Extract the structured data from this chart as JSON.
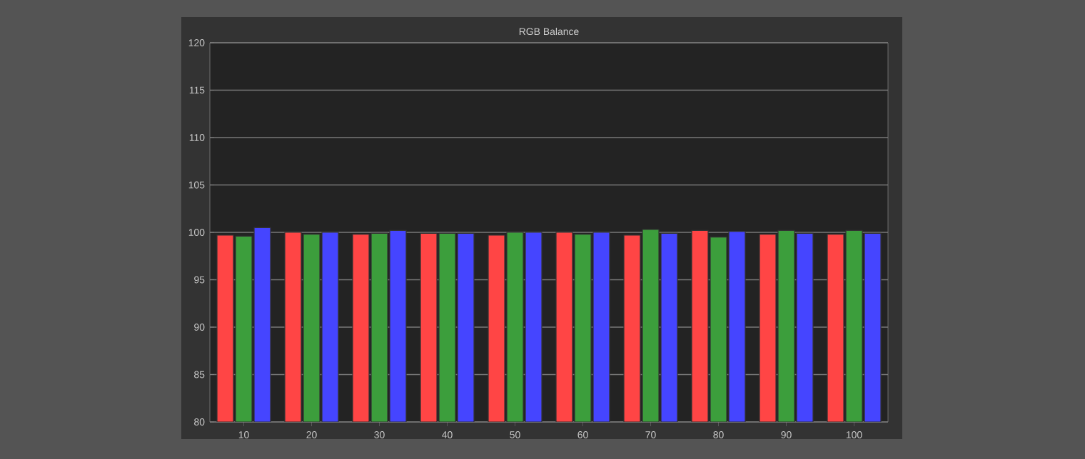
{
  "chart_data": {
    "type": "bar",
    "title": "RGB Balance",
    "categories": [
      "10",
      "20",
      "30",
      "40",
      "50",
      "60",
      "70",
      "80",
      "90",
      "100"
    ],
    "series": [
      {
        "color": "#ff4545",
        "values": [
          99.7,
          100.0,
          99.8,
          99.9,
          99.7,
          100.0,
          99.7,
          100.2,
          99.8,
          99.8
        ]
      },
      {
        "color": "#3c9e3c",
        "values": [
          99.6,
          99.8,
          99.9,
          99.9,
          100.0,
          99.8,
          100.3,
          99.5,
          100.2,
          100.2
        ]
      },
      {
        "color": "#4545ff",
        "values": [
          100.5,
          100.0,
          100.2,
          99.9,
          100.0,
          100.0,
          99.9,
          100.1,
          99.9,
          99.9
        ]
      }
    ],
    "ylim": [
      80,
      120
    ],
    "yticks": [
      80,
      85,
      90,
      95,
      100,
      105,
      110,
      115,
      120
    ],
    "grid": "y"
  }
}
